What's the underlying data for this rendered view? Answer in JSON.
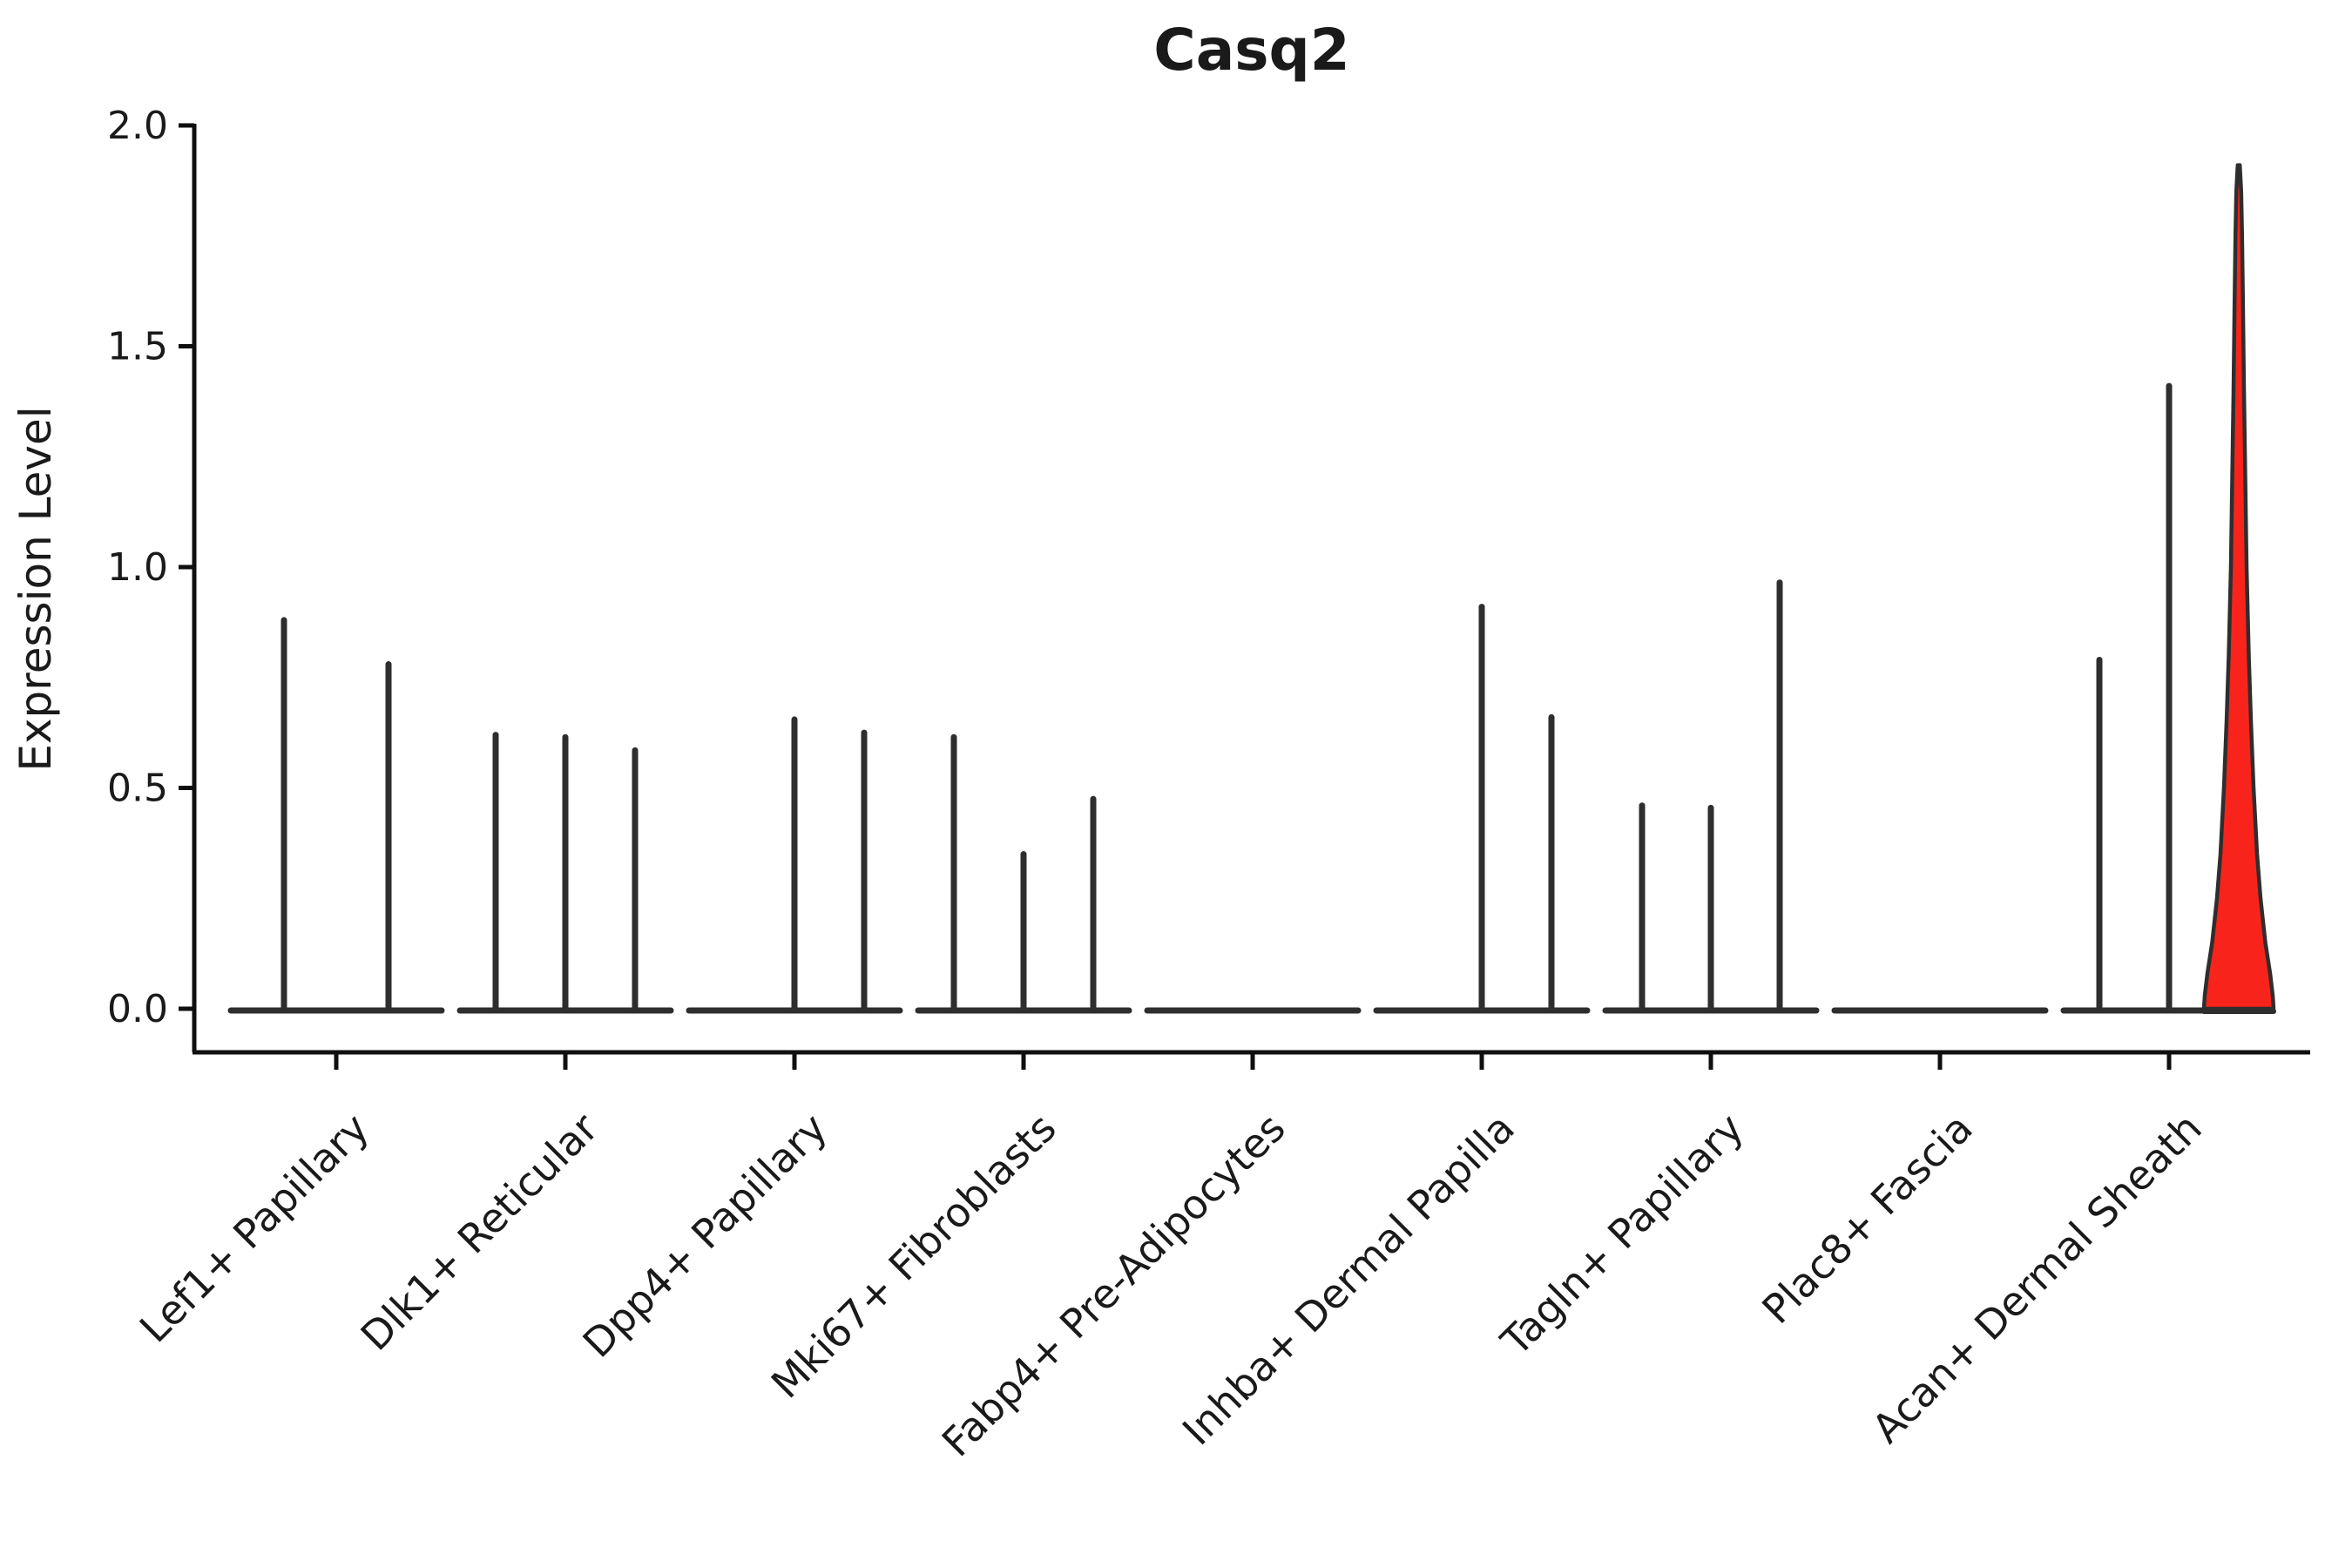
{
  "title": "Casq2",
  "colors": {
    "background": "#ffffff",
    "ink": "#0f0f0f",
    "violin_stroke": "#2e2e2e",
    "highlight_fill": "#f8241c"
  },
  "chart_data": {
    "type": "violin",
    "title": "Casq2",
    "xlabel": "",
    "ylabel": "Expression Level",
    "ylim": [
      -0.1,
      2.0
    ],
    "yticks": [
      "0.0",
      "0.5",
      "1.0",
      "1.5",
      "2.0"
    ],
    "ytick_values": [
      0.0,
      0.5,
      1.0,
      1.5,
      2.0
    ],
    "grid": false,
    "legend": "none",
    "categories": [
      {
        "label": "Lef1+ Papillary",
        "spikes": [
          {
            "offset": -60,
            "peak": 0.88
          },
          {
            "offset": 60,
            "peak": 0.78
          }
        ]
      },
      {
        "label": "Dlk1+ Reticular",
        "spikes": [
          {
            "offset": -80,
            "peak": 0.62
          },
          {
            "offset": 0,
            "peak": 0.615
          },
          {
            "offset": 80,
            "peak": 0.585
          }
        ]
      },
      {
        "label": "Dpp4+ Papillary",
        "spikes": [
          {
            "offset": 0,
            "peak": 0.655
          },
          {
            "offset": 80,
            "peak": 0.625
          }
        ]
      },
      {
        "label": "Mki67+ Fibroblasts",
        "spikes": [
          {
            "offset": -80,
            "peak": 0.615
          },
          {
            "offset": 0,
            "peak": 0.35
          },
          {
            "offset": 80,
            "peak": 0.475
          }
        ]
      },
      {
        "label": "Fabp4+ Pre-Adipocytes",
        "spikes": []
      },
      {
        "label": "Inhba+ Dermal Papilla",
        "spikes": [
          {
            "offset": 0,
            "peak": 0.91
          },
          {
            "offset": 80,
            "peak": 0.66
          }
        ]
      },
      {
        "label": "Tagln+ Papillary",
        "spikes": [
          {
            "offset": -79,
            "peak": 0.46
          },
          {
            "offset": 0,
            "peak": 0.455
          },
          {
            "offset": 79,
            "peak": 0.965
          }
        ]
      },
      {
        "label": "Plac8+ Fascia",
        "spikes": []
      },
      {
        "label": "Acan+ Dermal Sheath",
        "spikes": [
          {
            "offset": -80,
            "peak": 0.79
          },
          {
            "offset": 0,
            "peak": 1.41
          }
        ]
      }
    ],
    "highlight_violin": {
      "category": "Acan+ Dermal Sheath",
      "offset": 80,
      "max_value": 1.91,
      "fill": "#f8241c",
      "profile": [
        [
          0.0,
          40.0
        ],
        [
          0.03,
          39.0
        ],
        [
          0.08,
          36.0
        ],
        [
          0.15,
          30.5
        ],
        [
          0.25,
          25.0
        ],
        [
          0.35,
          21.0
        ],
        [
          0.5,
          17.0
        ],
        [
          0.65,
          14.0
        ],
        [
          0.8,
          11.5
        ],
        [
          1.0,
          9.0
        ],
        [
          1.2,
          7.5
        ],
        [
          1.4,
          6.0
        ],
        [
          1.6,
          4.8
        ],
        [
          1.75,
          3.8
        ],
        [
          1.85,
          2.8
        ],
        [
          1.91,
          1.2
        ]
      ]
    }
  }
}
